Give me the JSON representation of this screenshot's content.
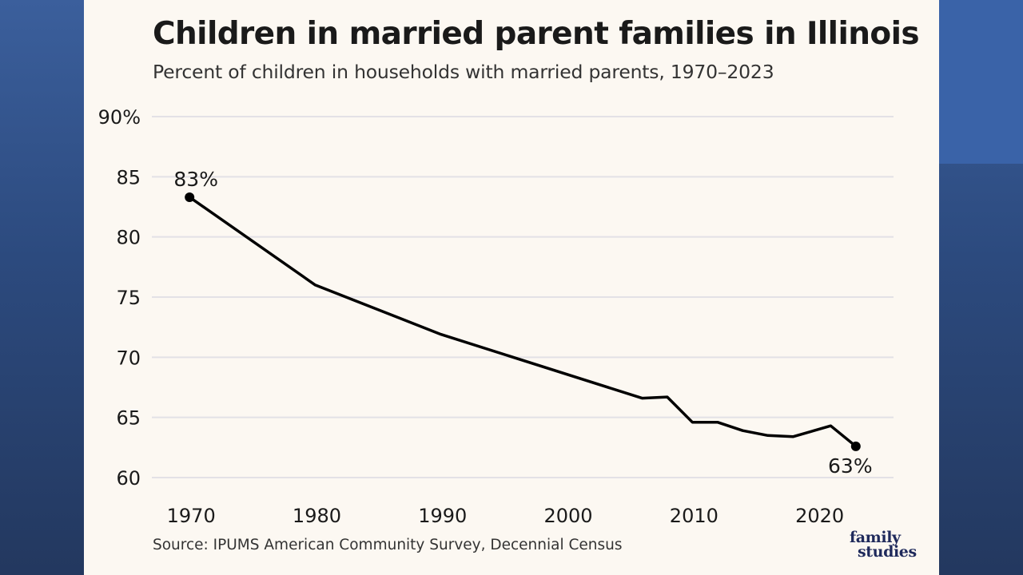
{
  "header": {
    "title": "Children in married parent families in Illinois",
    "subtitle": "Percent of children in households with married parents, 1970–2023"
  },
  "footer": {
    "source": "Source: IPUMS American Community Survey, Decennial Census",
    "logo_line1": "family",
    "logo_line2": "studies"
  },
  "colors": {
    "line": "#000000",
    "panel": "#fcf8f2",
    "logo": "#1f2a5c"
  },
  "chart_data": {
    "type": "line",
    "title": "Children in married parent families in Illinois",
    "subtitle": "Percent of children in households with married parents, 1970–2023",
    "xlabel": "",
    "ylabel": "",
    "xlim": [
      1967,
      2026
    ],
    "ylim": [
      60,
      90
    ],
    "grid": true,
    "yticks": [
      {
        "value": 90,
        "label": "90%"
      },
      {
        "value": 85,
        "label": "85"
      },
      {
        "value": 80,
        "label": "80"
      },
      {
        "value": 75,
        "label": "75"
      },
      {
        "value": 70,
        "label": "70"
      },
      {
        "value": 65,
        "label": "65"
      },
      {
        "value": 60,
        "label": "60"
      }
    ],
    "xticks": [
      {
        "value": 1970,
        "label": "1970"
      },
      {
        "value": 1980,
        "label": "1980"
      },
      {
        "value": 1990,
        "label": "1990"
      },
      {
        "value": 2000,
        "label": "2000"
      },
      {
        "value": 2010,
        "label": "2010"
      },
      {
        "value": 2020,
        "label": "2020"
      }
    ],
    "series": [
      {
        "name": "Illinois",
        "x": [
          1970,
          1980,
          1990,
          2006,
          2008,
          2010,
          2012,
          2014,
          2016,
          2018,
          2021,
          2023
        ],
        "values": [
          83.3,
          76.0,
          71.9,
          66.6,
          66.7,
          64.6,
          64.6,
          63.9,
          63.5,
          63.4,
          64.3,
          62.6
        ]
      }
    ],
    "annotations": [
      {
        "text": "83%",
        "x": 1970,
        "y": 83.3,
        "position": "above"
      },
      {
        "text": "63%",
        "x": 2023,
        "y": 62.6,
        "position": "below"
      }
    ]
  }
}
